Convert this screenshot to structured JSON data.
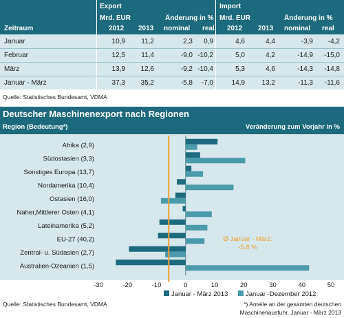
{
  "table": {
    "group_export": "Export",
    "group_import": "Import",
    "col_period": "Zeitraum",
    "col_mrd_eur": "Mrd. EUR",
    "col_change": "Änderung in %",
    "col_2012": "2012",
    "col_2013": "2013",
    "col_nominal": "nominal",
    "col_real": "real",
    "rows": [
      {
        "period": "Januar",
        "e2012": "10,9",
        "e2013": "11,2",
        "enom": "2,3",
        "ereal": "0,9",
        "i2012": "4,6",
        "i2013": "4,4",
        "inom": "-3,9",
        "ireal": "-4,2"
      },
      {
        "period": "Februar",
        "e2012": "12,5",
        "e2013": "11,4",
        "enom": "-9,0",
        "ereal": "-10,2",
        "i2012": "5,0",
        "i2013": "4,2",
        "inom": "-14,9",
        "ireal": "-15,0"
      },
      {
        "period": "März",
        "e2012": "13,9",
        "e2013": "12,6",
        "enom": "-9,2",
        "ereal": "-10,4",
        "i2012": "5,3",
        "i2013": "4,6",
        "inom": "-14,3",
        "ireal": "-14,8"
      },
      {
        "period": "Januar - März",
        "e2012": "37,3",
        "e2013": "35,2",
        "enom": "-5,8",
        "ereal": "-7,0",
        "i2012": "14,9",
        "i2013": "13,2",
        "inom": "-11,3",
        "ireal": "-11,6"
      }
    ],
    "source": "Quelle: Statistisches Bundesamt, VDMA"
  },
  "chart_data": {
    "type": "bar",
    "orientation": "horizontal",
    "title": "Deutscher Maschinenexport nach Regionen",
    "region_header": "Region (Bedeutung*)",
    "value_header": "Veränderung  zum Vorjahr in %",
    "categories": [
      "Afrika (2,9)",
      "Südostasien (3,3)",
      "Sonstiges Europa (13,7)",
      "Nordamerika (10,4)",
      "Ostasien (16,0)",
      "Naher,Mittlerer Osten (4,1)",
      "Lateinamerika (5,2)",
      "EU-27 (40,2)",
      "Zentral- u. Südasien (2,7)",
      "Australien-Ozeanien (1,5)"
    ],
    "series": [
      {
        "name": "Januar - März 2013",
        "color": "#1d6a7e",
        "values": [
          11,
          5,
          2,
          -3,
          -3.5,
          -1,
          -9,
          -9.5,
          -19.5,
          -24
        ]
      },
      {
        "name": "Januar -Dezember 2012",
        "color": "#4a9aaa",
        "values": [
          4,
          20.5,
          6,
          16.5,
          -8.5,
          9,
          7.5,
          6.5,
          -7,
          42.5
        ]
      }
    ],
    "reference_line": {
      "value": -5.8,
      "color": "#f0a030",
      "label_line1": "Ø Januar - März:",
      "label_line2": "-5,8 %"
    },
    "xlim": [
      -30,
      50
    ],
    "xticks": [
      -30,
      -20,
      -10,
      0,
      10,
      20,
      30,
      40,
      50
    ],
    "legend_position": "bottom"
  },
  "footer": {
    "source": "Quelle: Statistisches Bundesamt, VDMA",
    "note_line1": "*) Anteile an der gesamten deutschen",
    "note_line2": "Maschinenausfuhr, Januar - März 2013"
  }
}
